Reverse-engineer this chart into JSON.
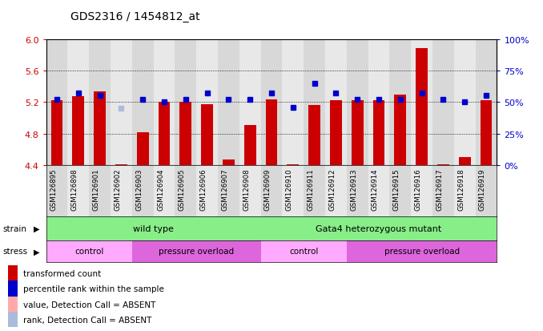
{
  "title": "GDS2316 / 1454812_at",
  "samples": [
    "GSM126895",
    "GSM126898",
    "GSM126901",
    "GSM126902",
    "GSM126903",
    "GSM126904",
    "GSM126905",
    "GSM126906",
    "GSM126907",
    "GSM126908",
    "GSM126909",
    "GSM126910",
    "GSM126911",
    "GSM126912",
    "GSM126913",
    "GSM126914",
    "GSM126915",
    "GSM126916",
    "GSM126917",
    "GSM126918",
    "GSM126919"
  ],
  "red_values": [
    5.22,
    5.27,
    5.34,
    4.41,
    4.82,
    5.2,
    5.2,
    5.17,
    4.47,
    4.91,
    5.23,
    4.41,
    5.16,
    5.22,
    5.22,
    5.22,
    5.3,
    5.88,
    4.41,
    4.5,
    5.22
  ],
  "blue_values": [
    52,
    57,
    55,
    45,
    52,
    50,
    52,
    57,
    52,
    52,
    57,
    46,
    65,
    57,
    52,
    52,
    52,
    57,
    52,
    50,
    55
  ],
  "absent_rank": [
    false,
    false,
    false,
    true,
    false,
    false,
    false,
    false,
    false,
    false,
    false,
    false,
    false,
    false,
    false,
    false,
    false,
    false,
    false,
    false,
    false
  ],
  "absent_value": [
    false,
    false,
    false,
    false,
    false,
    false,
    false,
    false,
    false,
    false,
    false,
    false,
    false,
    false,
    false,
    false,
    false,
    false,
    false,
    false,
    false
  ],
  "y_min": 4.4,
  "y_max": 6.0,
  "y_ticks": [
    4.4,
    4.8,
    5.2,
    5.6,
    6.0
  ],
  "y2_ticks": [
    0,
    25,
    50,
    75,
    100
  ],
  "bar_color": "#cc0000",
  "blue_color": "#0000cc",
  "absent_rank_color": "#aabbdd",
  "absent_value_color": "#ffaaaa",
  "background_color": "#ffffff",
  "col_bg_even": "#d8d8d8",
  "col_bg_odd": "#e8e8e8",
  "strain_defs": [
    {
      "start": 0,
      "end": 9,
      "color": "#88ee88",
      "label": "wild type"
    },
    {
      "start": 10,
      "end": 20,
      "color": "#88ee88",
      "label": "Gata4 heterozygous mutant"
    }
  ],
  "stress_defs": [
    {
      "start": 0,
      "end": 3,
      "color": "#ffaaff",
      "label": "control"
    },
    {
      "start": 4,
      "end": 9,
      "color": "#dd66dd",
      "label": "pressure overload"
    },
    {
      "start": 10,
      "end": 13,
      "color": "#ffaaff",
      "label": "control"
    },
    {
      "start": 14,
      "end": 20,
      "color": "#dd66dd",
      "label": "pressure overload"
    }
  ],
  "legend_items": [
    {
      "label": "transformed count",
      "color": "#cc0000"
    },
    {
      "label": "percentile rank within the sample",
      "color": "#0000cc"
    },
    {
      "label": "value, Detection Call = ABSENT",
      "color": "#ffaaaa"
    },
    {
      "label": "rank, Detection Call = ABSENT",
      "color": "#aabbdd"
    }
  ]
}
